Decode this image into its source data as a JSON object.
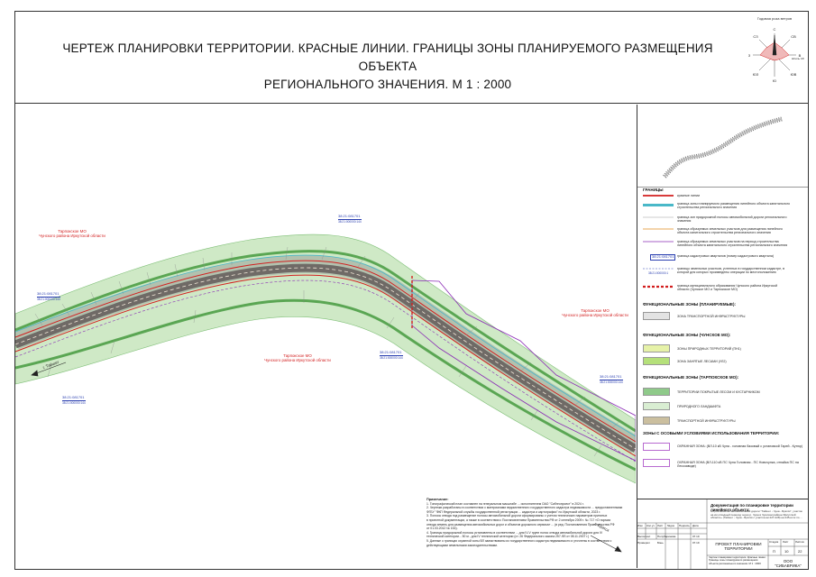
{
  "title": {
    "line1": "ЧЕРТЕЖ ПЛАНИРОВКИ ТЕРРИТОРИИ. КРАСНЫЕ ЛИНИИ. ГРАНИЦЫ ЗОНЫ ПЛАНИРУЕМОГО РАЗМЕЩЕНИЯ ОБЪЕКТА",
    "line2": "РЕГИОНАЛЬНОГО ЗНАЧЕНИЯ. М 1 : 2000"
  },
  "compass": {
    "caption": "Годовая роза ветров",
    "directions": [
      "С",
      "СВ",
      "В",
      "ЮВ",
      "Ю",
      "ЮЗ",
      "З",
      "СЗ"
    ],
    "calm": "Штиль 16%"
  },
  "map_labels": {
    "region_top_left": "Тарпокское МО\nЧунского района Иркутской области",
    "region_center": "Тарпокское МО\nЧунского района Иркутской области",
    "region_right": "Тарпокское МО\nЧунского района Иркутской области",
    "dir_left": "г. Тайшет",
    "dir_right": "г. Братск"
  },
  "cadastral": [
    {
      "num": "38:21:081701",
      "sub": "38:21:000000:144"
    },
    {
      "num": "38:21:081701",
      "sub": "38:21:000000:144"
    },
    {
      "num": "38:21:081701",
      "sub": "38:21:000000:144"
    },
    {
      "num": "38:21:081701",
      "sub": "38:21:000000:144"
    },
    {
      "num": "38:21:081701",
      "sub": "38:21:000000:144"
    }
  ],
  "legend": {
    "section_borders": "ГРАНИЦЫ",
    "items": [
      {
        "text": "красные линии",
        "color": "#d21f1f",
        "style": "solid-thick"
      },
      {
        "text": "граница зоны планируемого размещения линейного объекта капитального строительства регионального значения",
        "color": "#49b8c8",
        "style": "band"
      },
      {
        "text": "граница зон придорожной полосы автомобильной дороги регионального значения",
        "color": "#9a9a9a",
        "style": "thin"
      },
      {
        "text": "граница образуемых земельных участков для размещения линейного объекта капитального строительства регионального значения",
        "color": "#e08a1e",
        "style": "solid"
      },
      {
        "text": "граница образуемых земельных участков на период строительства линейного объекта капитального строительства регионального значения",
        "color": "#8a2bb5",
        "style": "solid"
      },
      {
        "text": "граница кадастровых кварталов (номер кадастрового квартала)",
        "color": "#2a3fb0",
        "style": "box",
        "tag": "38:21:081701"
      },
      {
        "text": "границы земельных участков, учтенных в государственном кадастре, в которой для которых произведены операции по местоположению",
        "color": "#2a3fb0",
        "style": "dash",
        "tag": "38:21:000000:1"
      },
      {
        "text": "граница муниципального образования Чунского района Иркутской области (Чунское МО и Тарпокское МО)",
        "color": "#d21f1f",
        "style": "dash-thick"
      }
    ],
    "zones_planned_title": "ФУНКЦИОНАЛЬНЫЕ ЗОНЫ (ПЛАНИРУЕМЫЕ):",
    "zones_planned": [
      {
        "text": "ЗОНА ТРАНСПОРТНОЙ ИНФРАСТРУКТУРЫ",
        "color": "#e3e3e3"
      }
    ],
    "zones_chuna_title": "ФУНКЦИОНАЛЬНЫЕ ЗОНЫ (ЧУНСКОЕ МО):",
    "zones_chuna": [
      {
        "text": "ЗОНЫ ПРИРОДНЫХ ТЕРРИТОРИЙ (ПН1)",
        "color": "#e6f2a8"
      },
      {
        "text": "ЗОНА ЗАНЯТЫЕ ЛЕСАМИ (УЛ2)",
        "color": "#b5e07a"
      }
    ],
    "zones_tarpok_title": "ФУНКЦИОНАЛЬНЫЕ ЗОНЫ (ТАРПОКСКОЕ МО):",
    "zones_tarpok": [
      {
        "text": "ТЕРРИТОРИИ ПОКРЫТЫЕ ЛЕСОМ И КУСТАРНИКОМ",
        "color": "#8fca8a"
      },
      {
        "text": "ПРИРОДНОГО ЛАНДШАФТА",
        "color": "#d9eed2"
      },
      {
        "text": "ТРАНСПОРТНОЙ ИНФРАСТРУКТУРЫ",
        "color": "#cbbf9f"
      }
    ],
    "special_title": "ЗОНЫ С ОСОБЫМИ УСЛОВИЯМИ ИСПОЛЬЗОВАНИЯ ТЕРРИТОРИИ:",
    "special": [
      {
        "text": "ОХРАННАЯ ЗОНА: (ВЛ-10 кВ Чуна - головная базовый с установкой Гарей - Кутюр)",
        "color": "#b86ad0"
      },
      {
        "text": "ОХРАННАЯ ЗОНА (ВЛ-110 кВ ПС Чуна Головная - ПС Новочунка, отпайка ПС на Лесозаводе)",
        "color": "#b86ad0"
      }
    ]
  },
  "notes": {
    "title": "Примечание:",
    "lines": [
      "1. Топографический план составлен на генеральном масштабе ... исполнителем ОАО \"Сибгеопроект\" в 2024 г.",
      "2. Чертежи разработаны в соответствии с материалами ведомственного государственного кадастра недвижимости ... предоставленными",
      "ФГБУ \"ФКП Федеральной службы государственной регистрации ... кадастра и картографии\" по Иркутской области, 2023 г.",
      "3. Полосы отвода под размещение полосы автомобильной дороги сформированы с учетом технических параметров принятых",
      "в проектной документации, а также в соответствии с Постановлением Правительства РФ от 2 сентября 2009 г. № 717 «О нормах",
      "отвода земель для размещения автомобильных дорог и объектов дорожного сервиса» ... (в ред. Постановления Правительства РФ",
      "от 01.03.2012 № 154).",
      "4. Границы придорожной полосы установлены в соответствии ... для IV-V групп полос отвода автомобильной дороги для IV",
      "технической категории... 50 м - для IV технической категории (ст. 26 Федерального закона 257-ФЗ от 08.11.2007 г.)",
      "5. Данные о границах охранной зоны ВЛ заимствованы из государственного кадастра недвижимости и уточнены в соответствии с",
      "действующими земельными законодательствами."
    ]
  },
  "stamp": {
    "doc_title": "Документация по планировке территории линейного объекта:",
    "doc_desc": "«строительство автомобильной дороги \"Тайшет - Чуна - Братск\", участок на км отводный переход через р. Чуна в Чунском районе Иркутской области» (Тайшет - Чуна - Братск с участка км 227-228) на 245-м пк по ...",
    "cols": [
      "Изм",
      "Кол.уч",
      "Лист",
      "№док",
      "Подпись",
      "Дата"
    ],
    "rows": [
      {
        "role": "Выполнил",
        "name": "Полубаринова",
        "date": "07.19"
      },
      {
        "role": "Проверил",
        "name": "Бэнь",
        "date": "07.19"
      }
    ],
    "sheet_title": "ПРОЕКТ ПЛАНИРОВКИ ТЕРРИТОРИИ",
    "drawing_name": "Чертеж планировки территории. Красные линии. Границы зоны планируемого размещения объекта регионального значения. М 1 : 2000",
    "stage_label": "Стадия",
    "sheet_label": "Лист",
    "sheets_label": "Листов",
    "stage": "П",
    "sheet": "10",
    "sheets": "22",
    "company": "ООО \"СИБАВРИКА\""
  }
}
